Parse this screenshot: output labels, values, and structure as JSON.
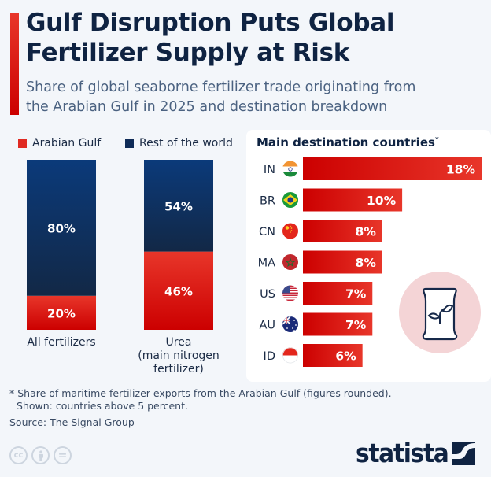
{
  "header": {
    "title_line1": "Gulf Disruption Puts Global",
    "title_line2": "Fertilizer Supply at Risk",
    "subtitle_line1": "Share of global seaborne fertilizer trade originating from",
    "subtitle_line2": "the Arabian Gulf in 2025 and destination breakdown"
  },
  "colors": {
    "accent_red": "#e02a22",
    "navy": "#0f2b57",
    "title": "#0f2342",
    "sack_circle": "#f4d4d6"
  },
  "chart_data": [
    {
      "type": "bar",
      "stacked": true,
      "normalized": true,
      "categories": [
        "All fertilizers",
        "Urea (main nitrogen fertilizer)"
      ],
      "category_lines": [
        [
          "All fertilizers"
        ],
        [
          "Urea",
          "(main nitrogen",
          "fertilizer)"
        ]
      ],
      "series": [
        {
          "name": "Arabian Gulf",
          "color": "#e02a22",
          "values": [
            20,
            46
          ],
          "labels": [
            "20%",
            "46%"
          ]
        },
        {
          "name": "Rest of the world",
          "color": "#0f2b57",
          "values": [
            80,
            54
          ],
          "labels": [
            "80%",
            "54%"
          ]
        }
      ],
      "legend": [
        "Arabian Gulf",
        "Rest of the world"
      ],
      "legend_position": "top",
      "ylim": [
        0,
        100
      ],
      "unit": "%"
    },
    {
      "type": "bar",
      "orientation": "horizontal",
      "title": "Main destination countries",
      "title_marker": "*",
      "categories": [
        "IN",
        "BR",
        "CN",
        "MA",
        "US",
        "AU",
        "ID"
      ],
      "flags": [
        "india-flag-icon",
        "brazil-flag-icon",
        "china-flag-icon",
        "morocco-flag-icon",
        "usa-flag-icon",
        "australia-flag-icon",
        "indonesia-flag-icon"
      ],
      "values": [
        18,
        10,
        8,
        8,
        7,
        7,
        6
      ],
      "labels": [
        "18%",
        "10%",
        "8%",
        "8%",
        "7%",
        "7%",
        "6%"
      ],
      "xlim": [
        0,
        18
      ],
      "unit": "%"
    }
  ],
  "footer": {
    "note_line1": "* Share of maritime fertilizer exports from the Arabian Gulf (figures rounded).",
    "note_line2": "Shown: countries above 5 percent.",
    "source": "Source: The Signal Group",
    "license_icons": [
      "cc-icon",
      "attribution-icon",
      "no-derivatives-icon"
    ],
    "license_glyphs": [
      "cc",
      "",
      "="
    ],
    "brand": "statista"
  }
}
